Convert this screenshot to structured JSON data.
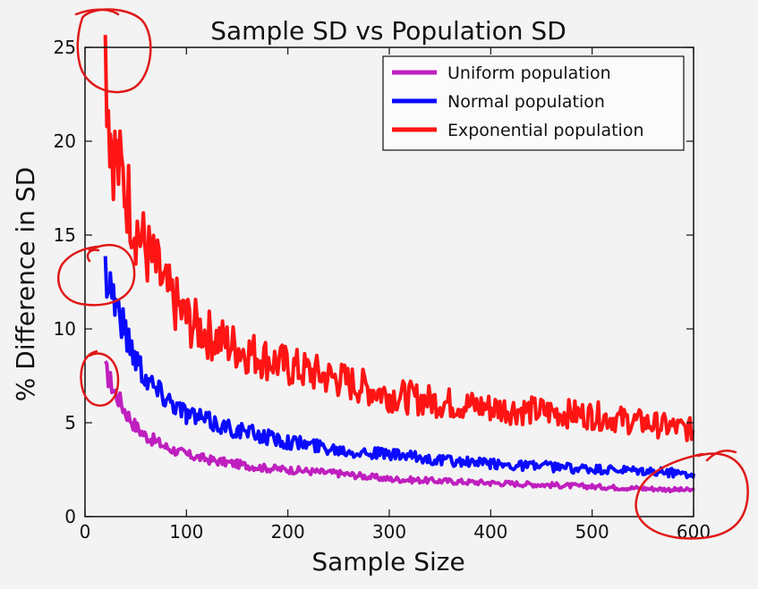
{
  "chart_data": {
    "type": "line",
    "title": "Sample SD vs Population SD",
    "xlabel": "Sample Size",
    "ylabel": "% Difference in SD",
    "xlim": [
      0,
      600
    ],
    "ylim": [
      0,
      25
    ],
    "xticks": [
      0,
      100,
      200,
      300,
      400,
      500,
      600
    ],
    "yticks": [
      0,
      5,
      10,
      15,
      20,
      25
    ],
    "grid": false,
    "legend_position": "top-right",
    "series": [
      {
        "name": "Uniform population",
        "color": "#bf1fbf",
        "x": [
          20,
          25,
          30,
          40,
          50,
          60,
          70,
          80,
          100,
          125,
          150,
          175,
          200,
          250,
          300,
          350,
          400,
          450,
          500,
          550,
          600
        ],
        "values": [
          7.8,
          7.2,
          6.6,
          5.6,
          4.8,
          4.3,
          4.0,
          3.7,
          3.3,
          3.0,
          2.8,
          2.6,
          2.5,
          2.3,
          2.0,
          1.9,
          1.8,
          1.7,
          1.6,
          1.5,
          1.4
        ]
      },
      {
        "name": "Normal population",
        "color": "#0a0aff",
        "x": [
          20,
          25,
          30,
          40,
          50,
          60,
          70,
          80,
          100,
          125,
          150,
          175,
          200,
          250,
          300,
          350,
          400,
          450,
          500,
          550,
          600
        ],
        "values": [
          13.2,
          12.5,
          11.5,
          9.8,
          8.5,
          7.5,
          6.8,
          6.4,
          5.5,
          5.0,
          4.6,
          4.3,
          4.0,
          3.6,
          3.3,
          3.0,
          2.8,
          2.7,
          2.5,
          2.4,
          2.3
        ]
      },
      {
        "name": "Exponential population",
        "color": "#ff1414",
        "x": [
          20,
          25,
          30,
          40,
          50,
          60,
          70,
          80,
          100,
          125,
          150,
          175,
          200,
          250,
          300,
          350,
          400,
          450,
          500,
          550,
          600
        ],
        "values": [
          24.8,
          20.5,
          19.0,
          17.5,
          15.5,
          14.2,
          13.2,
          12.0,
          10.5,
          9.6,
          9.0,
          8.5,
          8.0,
          7.3,
          6.5,
          6.1,
          5.8,
          5.6,
          5.4,
          5.0,
          4.6
        ]
      }
    ]
  }
}
